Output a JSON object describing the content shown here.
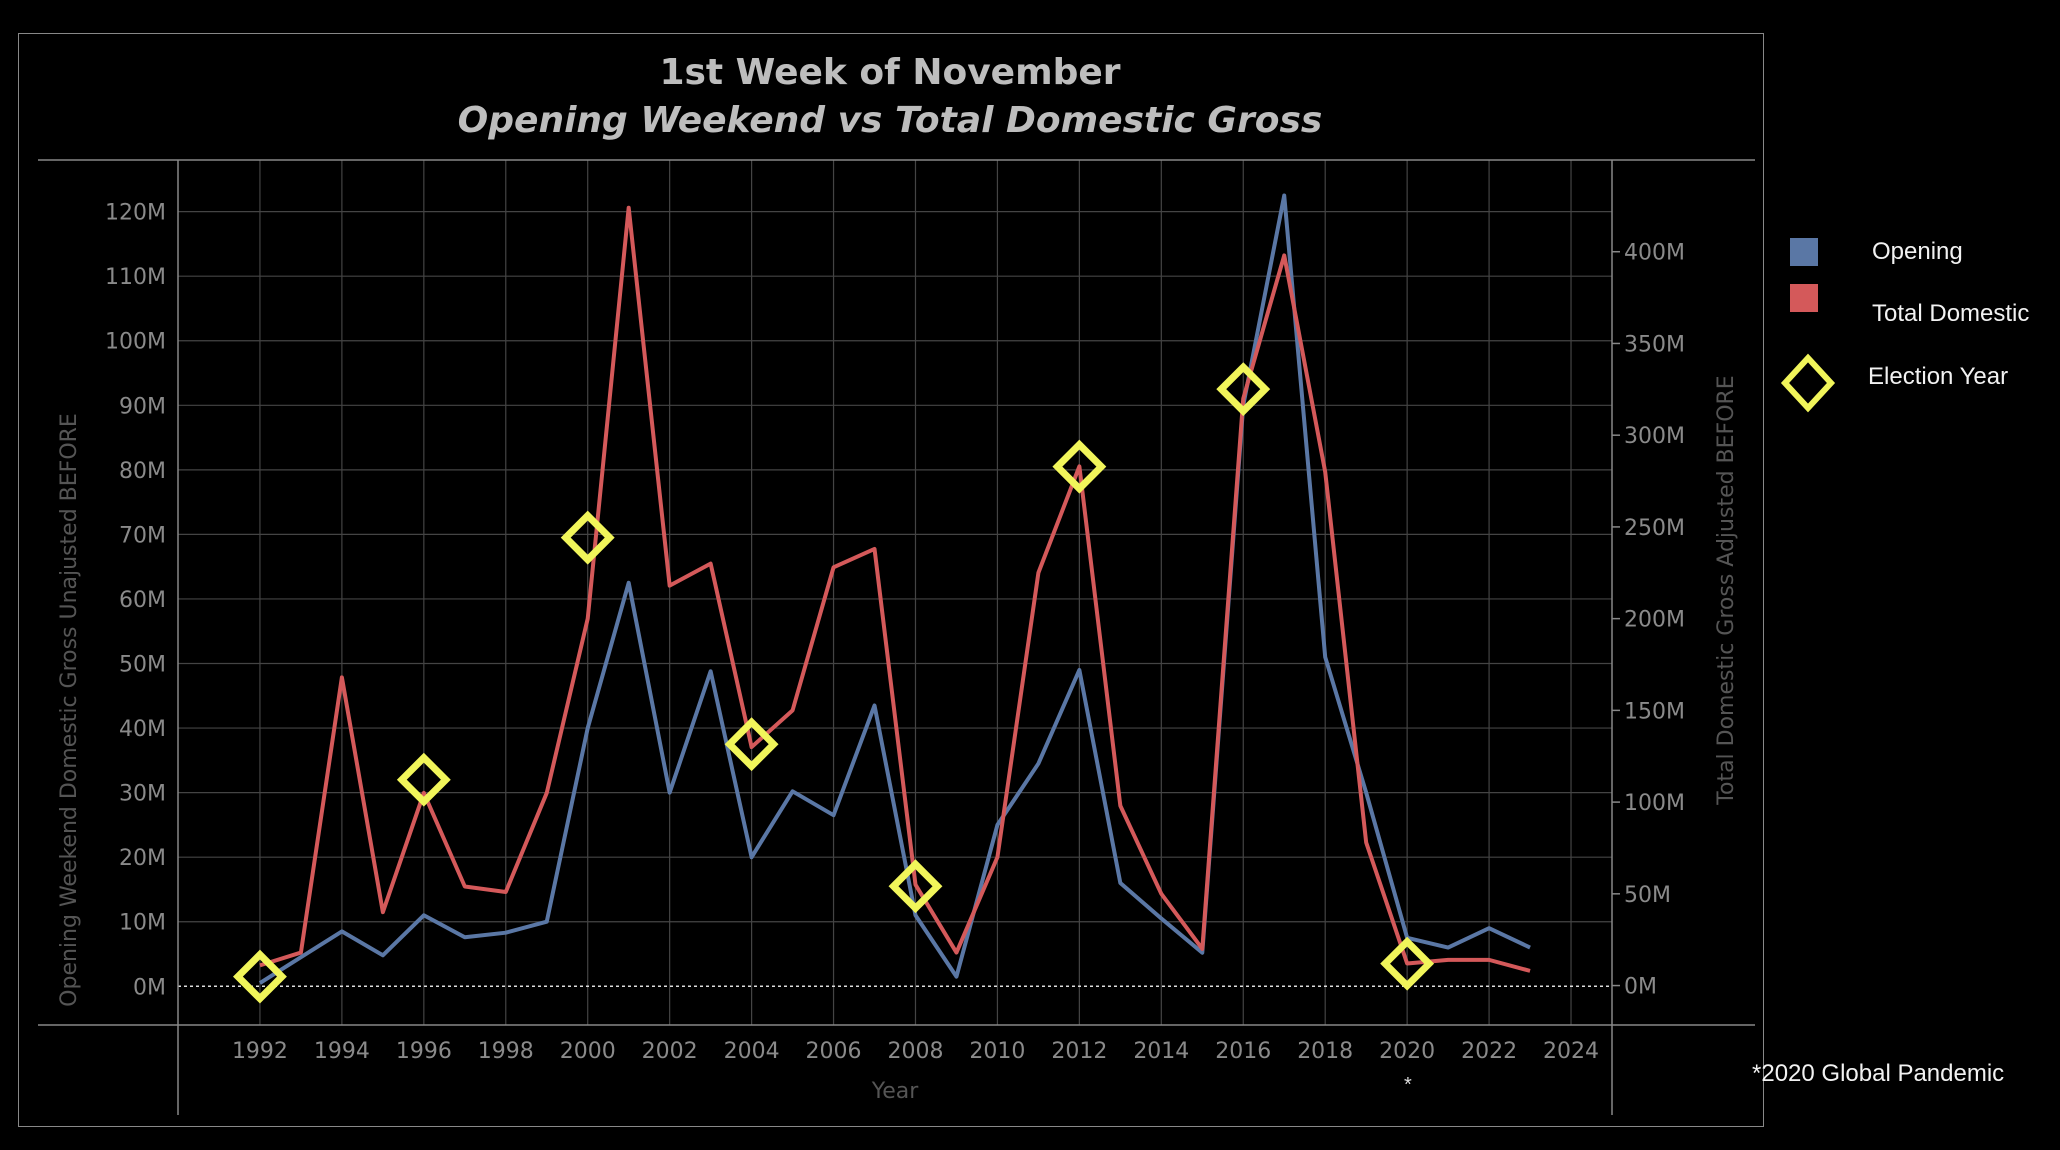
{
  "chart_data": {
    "type": "line",
    "title": "1st Week of November",
    "subtitle": "Opening Weekend vs Total Domestic Gross",
    "xlabel": "Year",
    "ylabel_left": "Opening Weekend Domestic Gross Unajusted BEFORE",
    "ylabel_right": "Total Domestic Gross Adjusted BEFORE",
    "x_ticks": [
      "1992",
      "1994",
      "1996",
      "1998",
      "2000",
      "2002",
      "2004",
      "2006",
      "2008",
      "2010",
      "2012",
      "2014",
      "2016",
      "2018",
      "2020",
      "2022",
      "2024"
    ],
    "left_ticks": [
      "0M",
      "10M",
      "20M",
      "30M",
      "40M",
      "50M",
      "60M",
      "70M",
      "80M",
      "90M",
      "100M",
      "110M",
      "120M"
    ],
    "right_ticks": [
      "0M",
      "50M",
      "100M",
      "150M",
      "200M",
      "250M",
      "300M",
      "350M",
      "400M"
    ],
    "xlim": [
      1990,
      2025
    ],
    "ylim_left": [
      -6,
      128
    ],
    "ylim_right": [
      -21.5,
      450
    ],
    "x": [
      1992,
      1993,
      1994,
      1995,
      1996,
      1997,
      1998,
      1999,
      2000,
      2001,
      2002,
      2003,
      2004,
      2005,
      2006,
      2007,
      2008,
      2009,
      2010,
      2011,
      2012,
      2013,
      2014,
      2015,
      2016,
      2017,
      2018,
      2019,
      2020,
      2021,
      2022,
      2023
    ],
    "series": [
      {
        "name": "Opening",
        "axis": "left",
        "color": "#5a77a5",
        "values": [
          0.5,
          4.5,
          8.5,
          4.8,
          11,
          7.6,
          8.3,
          10,
          40,
          62.5,
          30,
          48.8,
          20,
          30.2,
          26.5,
          43.5,
          11,
          1.5,
          25,
          34.5,
          49,
          16,
          10.5,
          5.2,
          90,
          122.5,
          51,
          30,
          7.5,
          6,
          9,
          6
        ]
      },
      {
        "name": "Total Domestic",
        "axis": "right",
        "color": "#d4595a",
        "values": [
          11,
          18,
          168,
          40,
          105,
          54,
          51,
          105,
          200,
          424,
          218,
          230,
          130,
          150,
          228,
          238,
          55,
          18,
          70,
          225,
          283,
          98,
          50,
          20,
          320,
          398,
          280,
          78,
          12,
          14,
          14,
          8
        ]
      }
    ],
    "election_markers": {
      "name": "Election Year",
      "color": "#f1f55a",
      "points": [
        [
          1992,
          1.5
        ],
        [
          1996,
          32
        ],
        [
          2000,
          69.5
        ],
        [
          2004,
          37.5
        ],
        [
          2008,
          15.5
        ],
        [
          2012,
          80.5
        ],
        [
          2016,
          92.5
        ],
        [
          2020,
          3.5
        ]
      ]
    },
    "grid": true,
    "legend_position": "right"
  },
  "legend": {
    "opening_label": "Opening",
    "total_label": "Total  Domestic",
    "election_label": "Election Year",
    "opening_color": "#5a77a5",
    "total_color": "#d4595a",
    "election_color": "#f1f55a"
  },
  "annotations": {
    "footnote": "*2020 Global Pandemic",
    "pandemic_star": "*"
  }
}
